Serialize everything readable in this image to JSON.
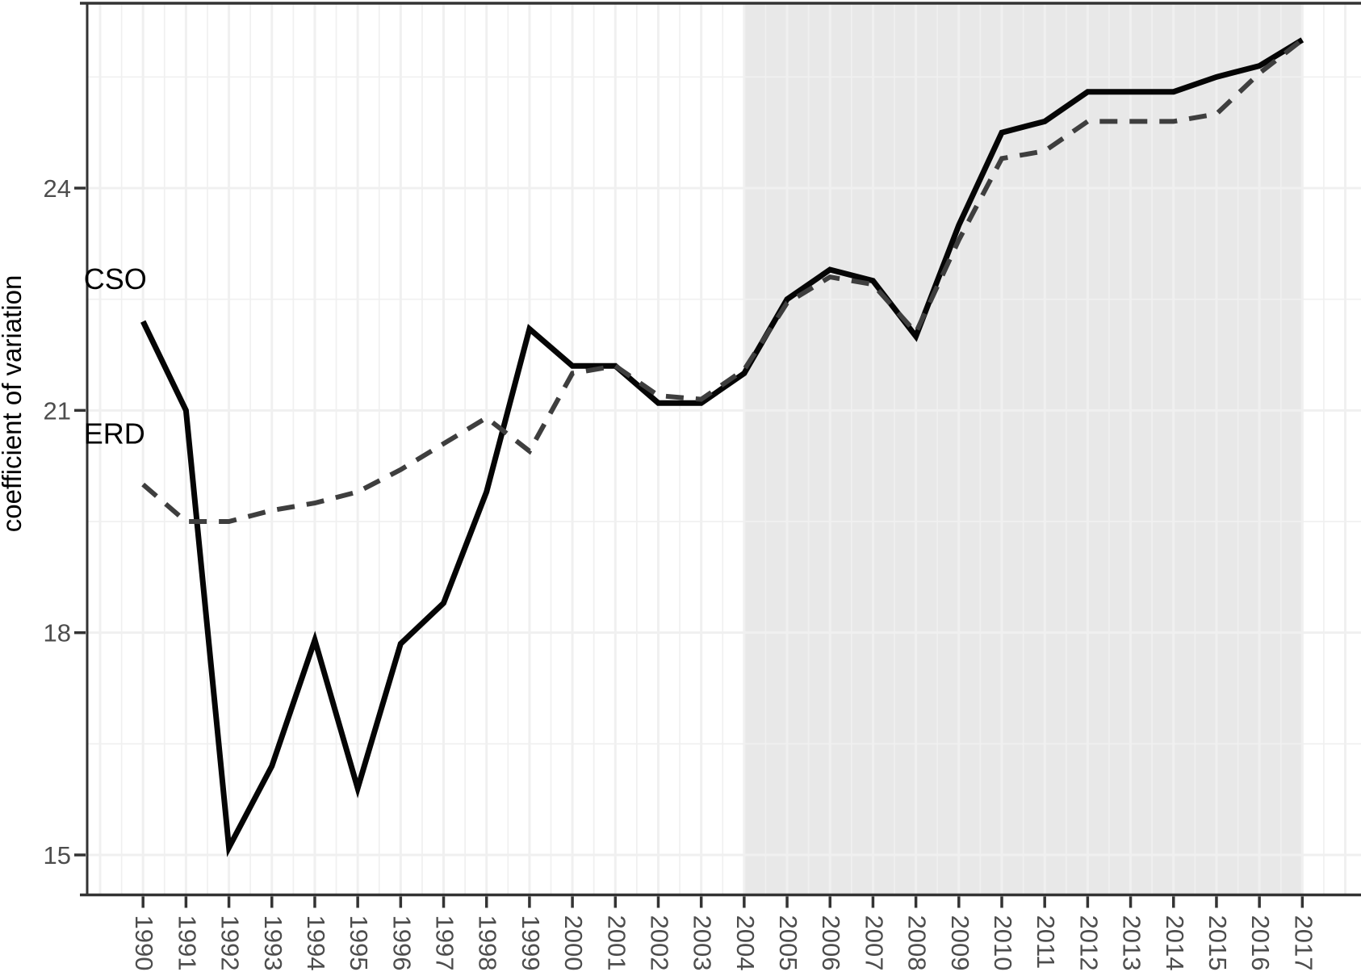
{
  "chart_data": {
    "type": "line",
    "title": "",
    "xlabel": "",
    "ylabel": "coefficient of variation",
    "x": [
      1990,
      1991,
      1992,
      1993,
      1994,
      1995,
      1996,
      1997,
      1998,
      1999,
      2000,
      2001,
      2002,
      2003,
      2004,
      2005,
      2006,
      2007,
      2008,
      2009,
      2010,
      2011,
      2012,
      2013,
      2014,
      2015,
      2016,
      2017
    ],
    "series": [
      {
        "name": "CSO",
        "line_style": "solid",
        "color": "#050505",
        "values": [
          22.2,
          21.0,
          15.1,
          16.2,
          17.9,
          15.9,
          17.85,
          18.4,
          19.9,
          22.1,
          21.6,
          21.6,
          21.1,
          21.1,
          21.5,
          22.5,
          22.9,
          22.75,
          22.0,
          23.5,
          24.75,
          24.9,
          25.3,
          25.3,
          25.3,
          25.5,
          25.65,
          26.0
        ]
      },
      {
        "name": "ERD",
        "line_style": "dashed",
        "color": "#3e3e3e",
        "values": [
          20.0,
          19.5,
          19.5,
          19.65,
          19.75,
          19.9,
          20.2,
          20.55,
          20.9,
          20.45,
          21.5,
          21.6,
          21.2,
          21.15,
          21.55,
          22.45,
          22.8,
          22.7,
          22.05,
          23.3,
          24.4,
          24.5,
          24.9,
          24.9,
          24.9,
          25.0,
          25.55,
          26.0
        ]
      }
    ],
    "y_ticks": [
      15,
      18,
      21,
      24
    ],
    "y_minor_gridlines": [
      16.5,
      19.5,
      22.5,
      25.5
    ],
    "ylim": [
      14.47,
      26.45
    ],
    "xlim": [
      1988.68,
      2018.37
    ],
    "grid": "major and minor, drawn over shaded band",
    "legend_position": "none (direct series labels on plot)",
    "shaded_region": {
      "x_start": 2004,
      "x_end": 2017,
      "color": "#e8e8e8"
    },
    "annotations": [
      {
        "text": "CSO",
        "x": 1988.62,
        "y": 22.77,
        "role": "series-label"
      },
      {
        "text": "ERD",
        "x": 1988.62,
        "y": 20.68,
        "role": "series-label"
      }
    ]
  },
  "style": {
    "background_color": "#ffffff",
    "band_color": "#e8e8e8",
    "grid_color": "#f0f0f0",
    "border_color": "#333333",
    "tick_color": "#333333",
    "tick_label_color": "#4d4d4d",
    "text_color": "#000000"
  }
}
